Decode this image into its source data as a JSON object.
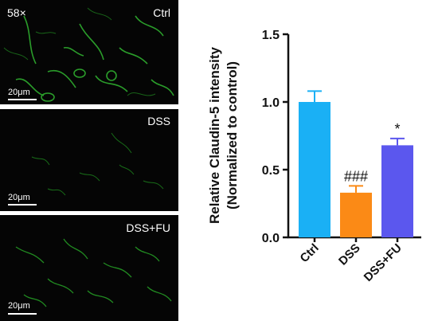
{
  "panels": [
    {
      "label": "Ctrl",
      "magnification": "58×",
      "scale": "20μm"
    },
    {
      "label": "DSS",
      "magnification": "",
      "scale": "20μm"
    },
    {
      "label": "DSS+FU",
      "magnification": "",
      "scale": "20μm"
    }
  ],
  "chart_data": {
    "type": "bar",
    "title": "",
    "categories": [
      "Ctrl",
      "DSS",
      "DSS+FU"
    ],
    "values": [
      1.0,
      0.33,
      0.68
    ],
    "errors": [
      0.08,
      0.05,
      0.05
    ],
    "annotations": [
      "",
      "###",
      "*"
    ],
    "colors": [
      "#1ab0f5",
      "#fb8a16",
      "#5b57ee"
    ],
    "ylabel": "Relative Claudin-5 intensity",
    "ylabel2": "(Normalized to control)",
    "ylim": [
      0,
      1.5
    ],
    "yticks": [
      0.0,
      0.5,
      1.0,
      1.5
    ],
    "grid": false
  }
}
